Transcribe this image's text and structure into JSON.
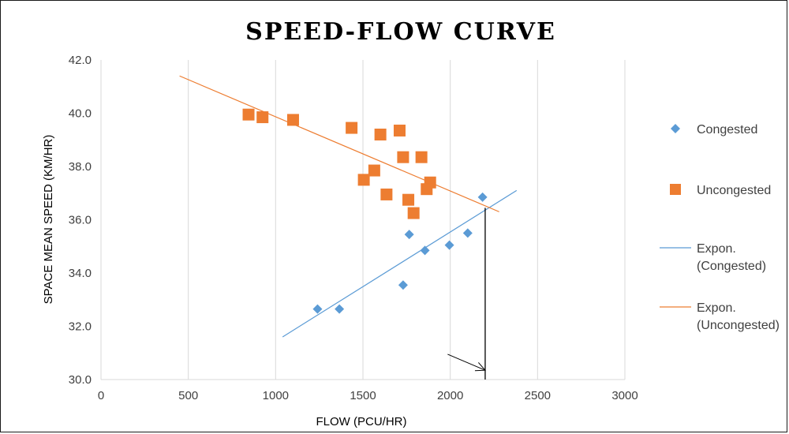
{
  "chart_data": {
    "type": "scatter",
    "title": "SPEED-FLOW CURVE",
    "xlabel": "FLOW (PCU/HR)",
    "ylabel": "SPACE MEAN SPEED (KM/HR)",
    "xlim": [
      0,
      3000
    ],
    "ylim": [
      30,
      42
    ],
    "xticks": [
      "0",
      "500",
      "1000",
      "1500",
      "2000",
      "2500",
      "3000"
    ],
    "yticks": [
      "30.0",
      "32.0",
      "34.0",
      "36.0",
      "38.0",
      "40.0",
      "42.0"
    ],
    "grid": "vertical",
    "legend_position": "right",
    "series": [
      {
        "name": "Congested",
        "marker": "diamond",
        "color": "#5B9BD5",
        "points": [
          [
            1240,
            32.65
          ],
          [
            1365,
            32.65
          ],
          [
            1730,
            33.55
          ],
          [
            1765,
            35.45
          ],
          [
            1855,
            34.85
          ],
          [
            1995,
            35.05
          ],
          [
            2100,
            35.5
          ],
          [
            2185,
            36.85
          ]
        ]
      },
      {
        "name": "Uncongested",
        "marker": "square",
        "color": "#ED7D31",
        "points": [
          [
            845,
            39.95
          ],
          [
            925,
            39.85
          ],
          [
            1100,
            39.75
          ],
          [
            1435,
            39.45
          ],
          [
            1600,
            39.2
          ],
          [
            1710,
            39.35
          ],
          [
            1730,
            38.35
          ],
          [
            1835,
            38.35
          ],
          [
            1565,
            37.85
          ],
          [
            1505,
            37.5
          ],
          [
            1885,
            37.4
          ],
          [
            1865,
            37.15
          ],
          [
            1635,
            36.95
          ],
          [
            1760,
            36.75
          ],
          [
            1790,
            36.25
          ]
        ]
      }
    ],
    "trendlines": [
      {
        "name": "Expon. (Congested)",
        "name_lines": [
          "Expon.",
          "(Congested)"
        ],
        "color": "#5B9BD5",
        "points": [
          [
            1040,
            31.6
          ],
          [
            2380,
            37.1
          ]
        ]
      },
      {
        "name": "Expon. (Uncongested)",
        "name_lines": [
          "Expon.",
          "(Uncongested)"
        ],
        "color": "#ED7D31",
        "points": [
          [
            450,
            41.4
          ],
          [
            2280,
            36.3
          ]
        ]
      }
    ],
    "annotations": {
      "vertical_line": {
        "x": 2200,
        "y_from": 36.45,
        "y_to": 30.0,
        "color": "#000000"
      },
      "arrow": {
        "from": [
          1985,
          30.95
        ],
        "to": [
          2200,
          30.35
        ],
        "color": "#000000"
      }
    }
  }
}
